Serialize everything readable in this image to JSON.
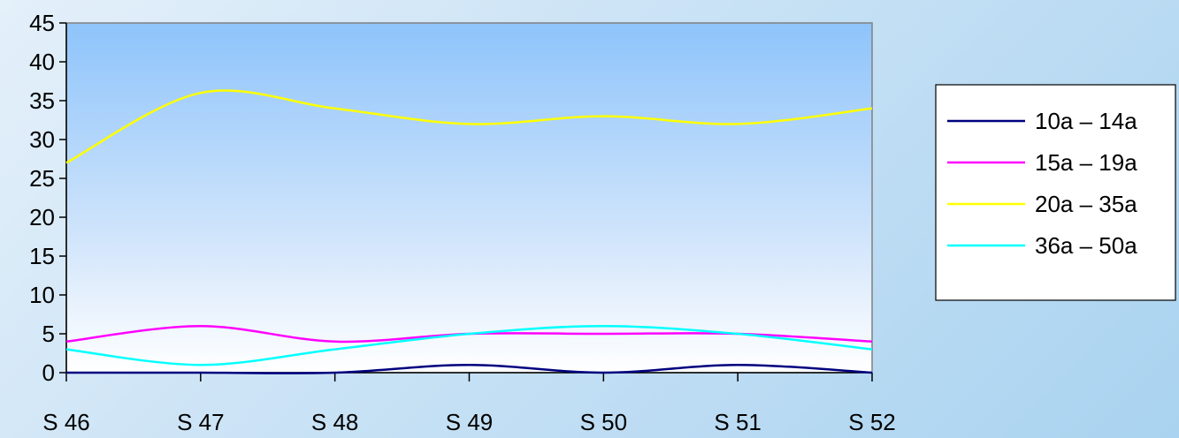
{
  "chart_data": {
    "type": "line",
    "categories": [
      "S 46",
      "S 47",
      "S 48",
      "S 49",
      "S 50",
      "S 51",
      "S 52"
    ],
    "series": [
      {
        "name": "10a – 14a",
        "color": "#00007f",
        "values": [
          0,
          0,
          0,
          1,
          0,
          1,
          0
        ]
      },
      {
        "name": "15a – 19a",
        "color": "#ff00ff",
        "values": [
          4,
          6,
          4,
          5,
          5,
          5,
          4
        ]
      },
      {
        "name": "20a – 35a",
        "color": "#ffff00",
        "values": [
          27,
          36,
          34,
          32,
          33,
          32,
          34
        ]
      },
      {
        "name": "36a – 50a",
        "color": "#00ffff",
        "values": [
          3,
          1,
          3,
          5,
          6,
          5,
          3
        ]
      }
    ],
    "ylim": [
      0,
      45
    ],
    "yticks": [
      "0",
      "5",
      "10",
      "15",
      "20",
      "25",
      "30",
      "35",
      "40",
      "45"
    ],
    "smooth": true,
    "grid": false,
    "legend_position": "right",
    "plot_background": {
      "top": "#8ec4fb",
      "bottom": "#ffffff"
    }
  }
}
